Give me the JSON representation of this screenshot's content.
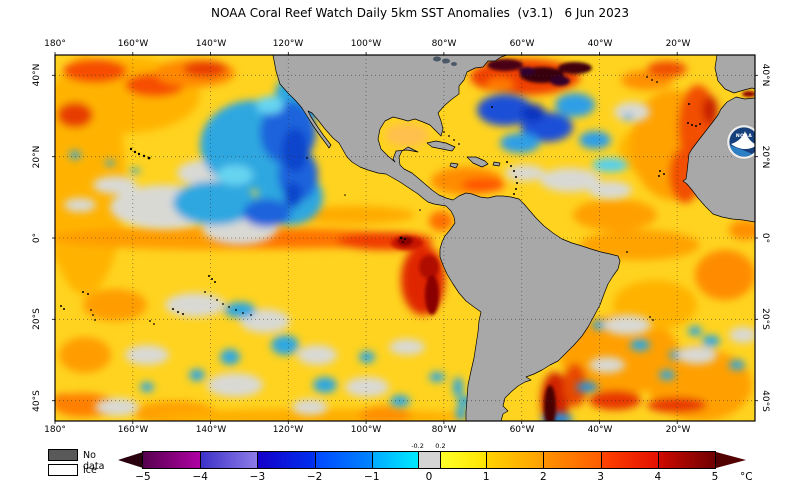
{
  "title": "NOAA Coral Reef Watch Daily 5km SST Anomalies  (v3.1)   6 Jun 2023",
  "axes": {
    "lon_labels": [
      "180°",
      "160°W",
      "140°W",
      "120°W",
      "100°W",
      "80°W",
      "60°W",
      "40°W",
      "20°W"
    ],
    "lat_labels": [
      "40°N",
      "20°N",
      "0°",
      "20°S",
      "40°S"
    ]
  },
  "legend": {
    "no_data_label": "No data",
    "ice_label": "Ice",
    "no_data_color": "#595959",
    "ice_color": "#ffffff"
  },
  "colorbar": {
    "unit": "°C",
    "ticks": [
      "−5",
      "−4",
      "−3",
      "−2",
      "−1",
      "0",
      "1",
      "2",
      "3",
      "4",
      "5"
    ],
    "tick_values": [
      -5,
      -4,
      -3,
      -2,
      -1,
      0,
      1,
      2,
      3,
      4,
      5
    ],
    "sub_ticks": [
      "-0.2",
      "0.2"
    ],
    "sub_tick_values": [
      -0.2,
      0.2
    ],
    "arrow_left_color": "#2b000e",
    "arrow_right_color": "#530000",
    "segments": [
      {
        "from": -5,
        "to": -4,
        "c0": "#56004e",
        "c1": "#b000a4"
      },
      {
        "from": -4,
        "to": -3,
        "c0": "#3c32c8",
        "c1": "#8d7ce8"
      },
      {
        "from": -3,
        "to": -2,
        "c0": "#1400c8",
        "c1": "#0030f0"
      },
      {
        "from": -2,
        "to": -1,
        "c0": "#0048ff",
        "c1": "#0085ff"
      },
      {
        "from": -1,
        "to": -0.2,
        "c0": "#00aaff",
        "c1": "#00eaff"
      },
      {
        "from": -0.2,
        "to": 0.2,
        "c0": "#d4d4d4",
        "c1": "#d4d4d4"
      },
      {
        "from": 0.2,
        "to": 1,
        "c0": "#fdff2a",
        "c1": "#ffe400"
      },
      {
        "from": 1,
        "to": 2,
        "c0": "#ffd200",
        "c1": "#ffa000"
      },
      {
        "from": 2,
        "to": 3,
        "c0": "#ff9300",
        "c1": "#ff5c00"
      },
      {
        "from": 3,
        "to": 4,
        "c0": "#ff4300",
        "c1": "#e41000"
      },
      {
        "from": 4,
        "to": 5,
        "c0": "#cf0a00",
        "c1": "#6f0000"
      }
    ]
  },
  "logo": {
    "text": "NOAA",
    "navy": "#15407c",
    "light_blue": "#2b7fc4"
  },
  "map": {
    "land_color": "#a8a8a8",
    "ocean_base_color": "#ffd31f",
    "near_zero_color": "#d9d9d4",
    "cool_spot_color": "#2fa7e0",
    "warm_band_color": "#ff7300",
    "extreme_warm_color": "#8a0000"
  }
}
